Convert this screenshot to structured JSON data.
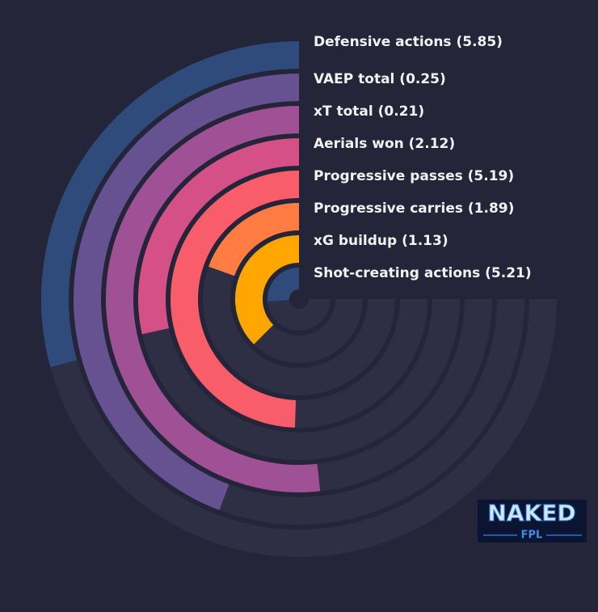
{
  "chart_data": {
    "type": "radial-bar",
    "categories": [
      "Defensive actions (5.85)",
      "VAEP total (0.25)",
      "xT total (0.21)",
      "Aerials won (2.12)",
      "Progressive passes (5.19)",
      "Progressive carries (1.89)",
      "xG buildup (1.13)",
      "Shot-creating actions (5.21)"
    ],
    "values": [
      39,
      59,
      69,
      38,
      66,
      26,
      50,
      35
    ],
    "colors": [
      "#2f4b7c",
      "#665191",
      "#a05195",
      "#d45087",
      "#f95d6a",
      "#ff7c43",
      "#ffa600",
      "#2f4b7c"
    ],
    "track_color": "#2e2e44",
    "ylim": [
      0,
      100
    ]
  },
  "logo": {
    "top": "NAKED",
    "bottom": "FPL"
  }
}
